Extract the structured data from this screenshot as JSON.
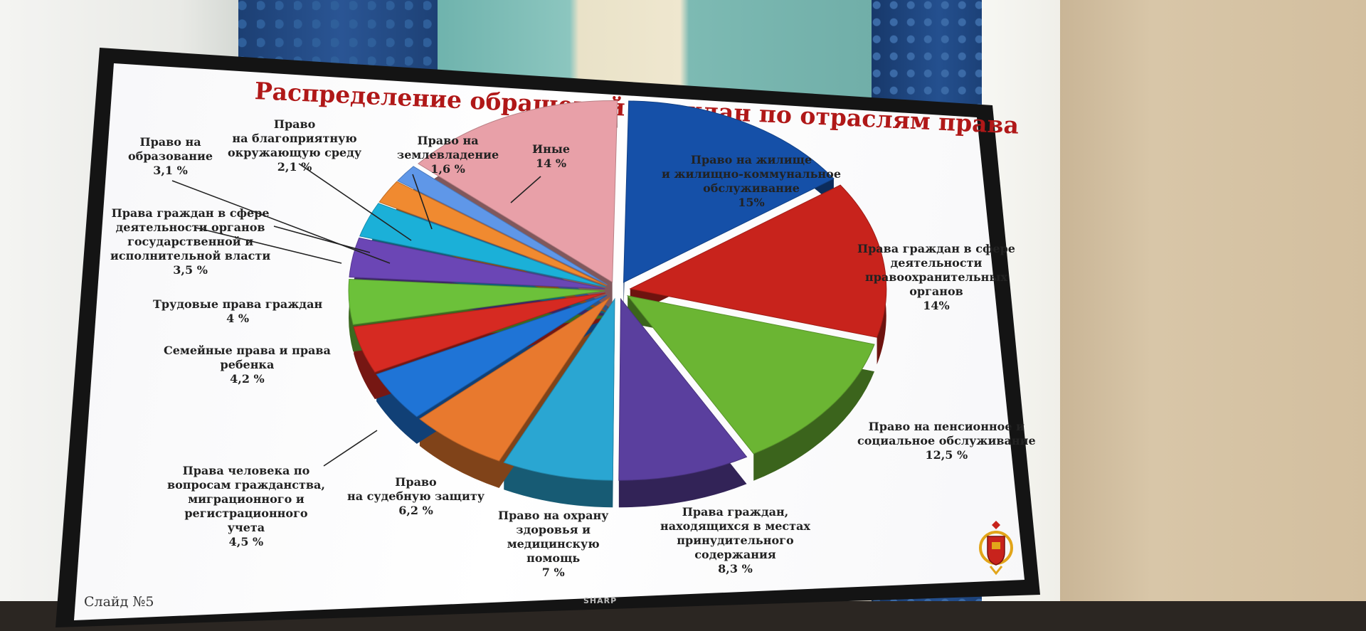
{
  "chart_data": {
    "type": "pie",
    "title": "Распределение обращений граждан по отраслям права",
    "slices": [
      {
        "label": [
          "Право на жилище",
          "и жилищно-коммунальное",
          "обслуживание"
        ],
        "value_text": "15%",
        "value": 15,
        "color": "#1550a8"
      },
      {
        "label": [
          "Права граждан в сфере",
          "деятельности",
          "правоохранительных",
          "органов"
        ],
        "value_text": "14%",
        "value": 14,
        "color": "#c8231c"
      },
      {
        "label": [
          "Право на пенсионное и",
          "социальное обслуживание"
        ],
        "value_text": "12,5 %",
        "value": 12.5,
        "color": "#6bb533"
      },
      {
        "label": [
          "Права граждан,",
          "находящихся в местах",
          "принудительного",
          "содержания"
        ],
        "value_text": "8,3 %",
        "value": 8.3,
        "color": "#5a3f9e"
      },
      {
        "label": [
          "Право на охрану",
          "здоровья и",
          "медицинскую",
          "помощь"
        ],
        "value_text": "7 %",
        "value": 7,
        "color": "#2aa6d2"
      },
      {
        "label": [
          "Право",
          "на судебную защиту"
        ],
        "value_text": "6,2 %",
        "value": 6.2,
        "color": "#e8792e"
      },
      {
        "label": [
          "Права человека по",
          "вопросам гражданства,",
          "миграционного и",
          "регистрационного",
          "учета"
        ],
        "value_text": "4,5 %",
        "value": 4.5,
        "color": "#1f74d6"
      },
      {
        "label": [
          "Семейные права и права",
          "ребенка"
        ],
        "value_text": "4,2 %",
        "value": 4.2,
        "color": "#d62a22"
      },
      {
        "label": [
          "Трудовые права граждан"
        ],
        "value_text": "4 %",
        "value": 4,
        "color": "#6cc13a"
      },
      {
        "label": [
          "Права граждан в сфере",
          "деятельности органов",
          "государственной и",
          "исполнительной власти"
        ],
        "value_text": "3,5 %",
        "value": 3.5,
        "color": "#6b46b5"
      },
      {
        "label": [
          "Право на",
          "образование"
        ],
        "value_text": "3,1 %",
        "value": 3.1,
        "color": "#1bb0d8"
      },
      {
        "label": [
          "Право",
          "на благоприятную",
          "окружающую среду"
        ],
        "value_text": "2,1 %",
        "value": 2.1,
        "color": "#f08a30"
      },
      {
        "label": [
          "Право на",
          "землевладение"
        ],
        "value_text": "1,6 %",
        "value": 1.6,
        "color": "#5f97e8"
      },
      {
        "label": [
          "Иные"
        ],
        "value_text": "14 %",
        "value": 14,
        "color": "#e8a0a8"
      }
    ]
  },
  "footer": {
    "slide_label": "Слайд №5"
  },
  "tv": {
    "brand": "SHARP"
  }
}
